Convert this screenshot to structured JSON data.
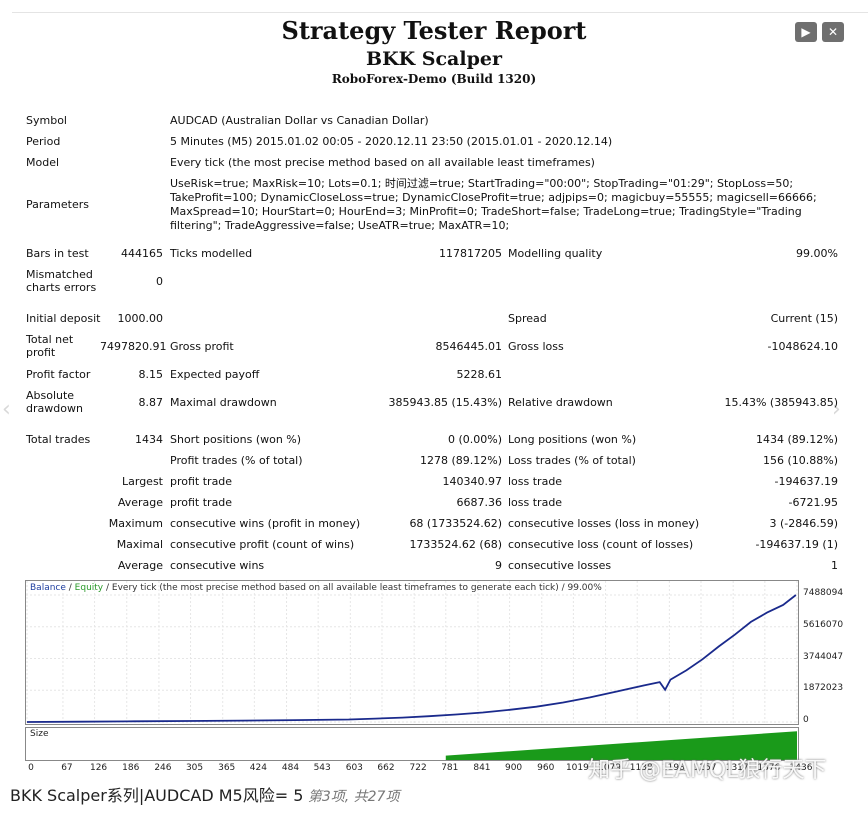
{
  "header": {
    "title": "Strategy Tester Report",
    "expert": "BKK Scalper",
    "server": "RoboForex-Demo (Build 1320)",
    "next_icon": "play-icon",
    "close_icon": "close-icon"
  },
  "report": {
    "symbol_label": "Symbol",
    "symbol_value": "AUDCAD (Australian Dollar vs Canadian Dollar)",
    "period_label": "Period",
    "period_value": "5 Minutes (M5) 2015.01.02 00:05 - 2020.12.11 23:50 (2015.01.01 - 2020.12.14)",
    "model_label": "Model",
    "model_value": "Every tick (the most precise method based on all available least timeframes)",
    "parameters_label": "Parameters",
    "parameters_value": "UseRisk=true; MaxRisk=10; Lots=0.1; 时间过滤=true; StartTrading=\"00:00\"; StopTrading=\"01:29\"; StopLoss=50; TakeProfit=100; DynamicCloseLoss=true; DynamicCloseProfit=true; adjpips=0; magicbuy=55555; magicsell=66666; MaxSpread=10; HourStart=0; HourEnd=3; MinProfit=0; TradeShort=false; TradeLong=true; TradingStyle=\"Trading filtering\"; TradeAggressive=false; UseATR=true; MaxATR=10;",
    "bars_label": "Bars in test",
    "bars_value": "444165",
    "ticks_label": "Ticks modelled",
    "ticks_value": "117817205",
    "quality_label": "Modelling quality",
    "quality_value": "99.00%",
    "mismatched_label": "Mismatched charts errors",
    "mismatched_value": "0",
    "deposit_label": "Initial deposit",
    "deposit_value": "1000.00",
    "spread_label": "Spread",
    "spread_value": "Current (15)",
    "net_profit_label": "Total net profit",
    "net_profit_value": "7497820.91",
    "gross_profit_label": "Gross profit",
    "gross_profit_value": "8546445.01",
    "gross_loss_label": "Gross loss",
    "gross_loss_value": "-1048624.10",
    "profit_factor_label": "Profit factor",
    "profit_factor_value": "8.15",
    "expected_payoff_label": "Expected payoff",
    "expected_payoff_value": "5228.61",
    "abs_dd_label": "Absolute drawdown",
    "abs_dd_value": "8.87",
    "max_dd_label": "Maximal drawdown",
    "max_dd_value": "385943.85 (15.43%)",
    "rel_dd_label": "Relative drawdown",
    "rel_dd_value": "15.43% (385943.85)",
    "total_trades_label": "Total trades",
    "total_trades_value": "1434",
    "short_label": "Short positions (won %)",
    "short_value": "0 (0.00%)",
    "long_label": "Long positions (won %)",
    "long_value": "1434 (89.12%)",
    "profit_trades_label": "Profit trades (% of total)",
    "profit_trades_value": "1278 (89.12%)",
    "loss_trades_label": "Loss trades (% of total)",
    "loss_trades_value": "156 (10.88%)",
    "largest_label": "Largest",
    "largest_profit_label": "profit trade",
    "largest_profit_value": "140340.97",
    "largest_loss_label": "loss trade",
    "largest_loss_value": "-194637.19",
    "average_label": "Average",
    "average_profit_label": "profit trade",
    "average_profit_value": "6687.36",
    "average_loss_label": "loss trade",
    "average_loss_value": "-6721.95",
    "maximum_label": "Maximum",
    "max_cons_wins_label": "consecutive wins (profit in money)",
    "max_cons_wins_value": "68 (1733524.62)",
    "max_cons_losses_label": "consecutive losses (loss in money)",
    "max_cons_losses_value": "3 (-2846.59)",
    "maximal_label": "Maximal",
    "maximal_profit_label": "consecutive profit (count of wins)",
    "maximal_profit_value": "1733524.62 (68)",
    "maximal_loss_label": "consecutive loss (count of losses)",
    "maximal_loss_value": "-194637.19 (1)",
    "average2_label": "Average",
    "avg_cons_wins_label": "consecutive wins",
    "avg_cons_wins_value": "9",
    "avg_cons_losses_label": "consecutive losses",
    "avg_cons_losses_value": "1"
  },
  "chart_legend": {
    "balance": "Balance",
    "sep1": " / ",
    "equity": "Equity",
    "rest": " / Every tick (the most precise method based on all available least timeframes to generate each tick) / 99.00%"
  },
  "chart_data": {
    "type": "line",
    "title": "",
    "ylim": [
      0,
      7488094
    ],
    "y_ticks": [
      "7488094",
      "5616070",
      "3744047",
      "1872023",
      "0"
    ],
    "x_ticks": [
      "0",
      "67",
      "126",
      "186",
      "246",
      "305",
      "365",
      "424",
      "484",
      "543",
      "603",
      "662",
      "722",
      "781",
      "841",
      "900",
      "960",
      "1019",
      "1079",
      "1138",
      "1198",
      "1257",
      "1317",
      "1376",
      "1436"
    ],
    "series": [
      {
        "name": "Balance",
        "color": "#1a2a8c",
        "x": [
          0,
          100,
          200,
          300,
          400,
          500,
          600,
          650,
          700,
          750,
          800,
          850,
          900,
          950,
          1000,
          1050,
          1100,
          1150,
          1180,
          1190,
          1200,
          1230,
          1260,
          1290,
          1320,
          1350,
          1380,
          1410,
          1434
        ],
        "y": [
          1000,
          20000,
          40000,
          60000,
          80000,
          110000,
          150000,
          200000,
          260000,
          340000,
          440000,
          560000,
          720000,
          900000,
          1150000,
          1450000,
          1800000,
          2150000,
          2350000,
          1900000,
          2500000,
          3050000,
          3700000,
          4450000,
          5150000,
          5900000,
          6450000,
          6900000,
          7488094
        ]
      }
    ],
    "size_chart": {
      "label": "Size",
      "color": "#1a9a1a",
      "start_trade": 781,
      "fill_from": 0.15,
      "fill_to": 1.0
    }
  },
  "caption": {
    "main": "BKK Scalper系列|AUDCAD M5风险= 5",
    "sub": " 第3项, 共27项"
  },
  "watermark": "知乎 @EAMQL狼行天下"
}
